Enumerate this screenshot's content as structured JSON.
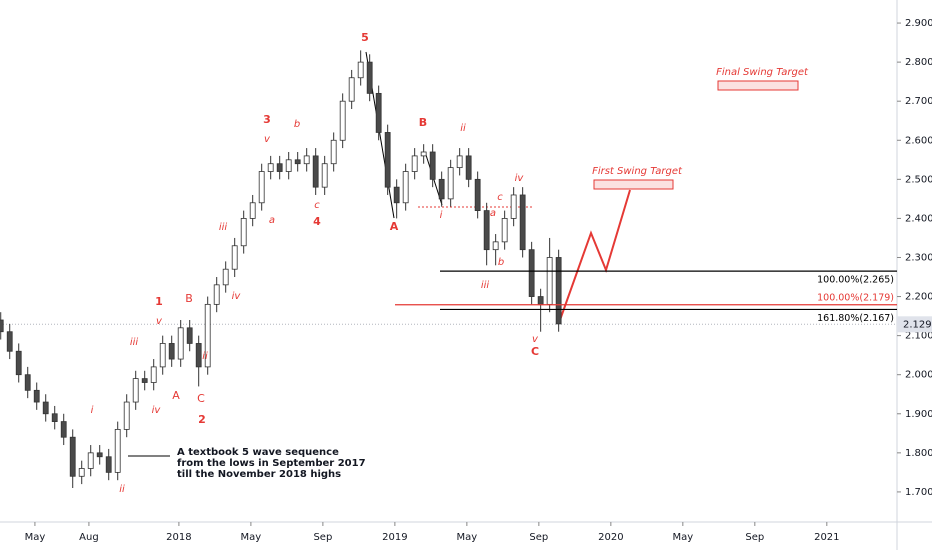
{
  "chart_data": {
    "type": "candlestick",
    "x": [
      2.1,
      2.6,
      3.1,
      3.6,
      4.1,
      4.6,
      5.1,
      5.6,
      6.1,
      6.6,
      7.1,
      7.6,
      8.1,
      8.6,
      9.1,
      9.6,
      10.1,
      10.6,
      11.1,
      11.6,
      12.1,
      12.6,
      13.1,
      13.6,
      14.1,
      14.6,
      15.1,
      15.6,
      16.1,
      16.6,
      17.1,
      17.6,
      18.1,
      18.6,
      19.1,
      19.6,
      20.1,
      20.6,
      21.1,
      21.6,
      22.1,
      22.6,
      23.1,
      23.6,
      24.1,
      24.6,
      25.1,
      25.6,
      26.1,
      26.6,
      27.1,
      27.6,
      28.1,
      28.6,
      29.1,
      29.6,
      30.1,
      30.6,
      31.1,
      31.6,
      32.1,
      32.6,
      33.1
    ],
    "open": [
      2.14,
      2.11,
      2.06,
      2.0,
      1.96,
      1.93,
      1.9,
      1.88,
      1.84,
      1.74,
      1.76,
      1.8,
      1.79,
      1.75,
      1.86,
      1.93,
      1.99,
      1.98,
      2.02,
      2.08,
      2.04,
      2.12,
      2.08,
      2.02,
      2.18,
      2.23,
      2.27,
      2.33,
      2.4,
      2.44,
      2.52,
      2.54,
      2.52,
      2.55,
      2.54,
      2.56,
      2.48,
      2.54,
      2.6,
      2.7,
      2.76,
      2.8,
      2.72,
      2.62,
      2.48,
      2.44,
      2.52,
      2.56,
      2.57,
      2.5,
      2.45,
      2.53,
      2.56,
      2.5,
      2.42,
      2.32,
      2.34,
      2.4,
      2.46,
      2.32,
      2.2,
      2.18,
      2.3
    ],
    "high": [
      2.16,
      2.13,
      2.08,
      2.02,
      1.98,
      1.95,
      1.92,
      1.9,
      1.86,
      1.78,
      1.82,
      1.82,
      1.81,
      1.88,
      1.95,
      2.01,
      2.01,
      2.04,
      2.1,
      2.1,
      2.14,
      2.14,
      2.1,
      2.2,
      2.25,
      2.29,
      2.35,
      2.42,
      2.46,
      2.54,
      2.56,
      2.56,
      2.57,
      2.57,
      2.58,
      2.58,
      2.56,
      2.62,
      2.72,
      2.78,
      2.83,
      2.82,
      2.74,
      2.64,
      2.5,
      2.54,
      2.58,
      2.59,
      2.59,
      2.52,
      2.55,
      2.58,
      2.58,
      2.52,
      2.44,
      2.36,
      2.42,
      2.48,
      2.48,
      2.34,
      2.22,
      2.35,
      2.32
    ],
    "low": [
      2.09,
      2.04,
      1.98,
      1.94,
      1.91,
      1.88,
      1.86,
      1.82,
      1.71,
      1.72,
      1.74,
      1.77,
      1.73,
      1.73,
      1.84,
      1.91,
      1.96,
      1.96,
      2.0,
      2.02,
      2.02,
      2.06,
      1.97,
      2.0,
      2.16,
      2.21,
      2.25,
      2.31,
      2.38,
      2.42,
      2.5,
      2.5,
      2.5,
      2.52,
      2.52,
      2.46,
      2.46,
      2.52,
      2.58,
      2.68,
      2.74,
      2.7,
      2.6,
      2.46,
      2.4,
      2.42,
      2.5,
      2.54,
      2.48,
      2.43,
      2.43,
      2.51,
      2.48,
      2.4,
      2.28,
      2.28,
      2.32,
      2.38,
      2.3,
      2.18,
      2.11,
      2.16,
      2.11
    ],
    "close": [
      2.11,
      2.06,
      2.0,
      1.96,
      1.93,
      1.9,
      1.88,
      1.84,
      1.74,
      1.76,
      1.8,
      1.79,
      1.75,
      1.86,
      1.93,
      1.99,
      1.98,
      2.02,
      2.08,
      2.04,
      2.12,
      2.08,
      2.02,
      2.18,
      2.23,
      2.27,
      2.33,
      2.4,
      2.44,
      2.52,
      2.54,
      2.52,
      2.55,
      2.54,
      2.56,
      2.48,
      2.54,
      2.6,
      2.7,
      2.76,
      2.8,
      2.72,
      2.62,
      2.48,
      2.44,
      2.52,
      2.56,
      2.57,
      2.5,
      2.45,
      2.53,
      2.56,
      2.5,
      2.42,
      2.32,
      2.34,
      2.4,
      2.46,
      2.32,
      2.2,
      2.18,
      2.3,
      2.13
    ],
    "up_color": "#ffffff",
    "down_color": "#4a4a4a",
    "outline_color": "#333333",
    "xlim": [
      2.06,
      51.9
    ],
    "xticks": [
      {
        "value": 4,
        "label": "May"
      },
      {
        "value": 7,
        "label": "Aug"
      },
      {
        "value": 12,
        "label": "2018"
      },
      {
        "value": 16,
        "label": "May"
      },
      {
        "value": 20,
        "label": "Sep"
      },
      {
        "value": 24,
        "label": "2019"
      },
      {
        "value": 28,
        "label": "May"
      },
      {
        "value": 32,
        "label": "Sep"
      },
      {
        "value": 36,
        "label": "2020"
      },
      {
        "value": 40,
        "label": "May"
      },
      {
        "value": 44,
        "label": "Sep"
      },
      {
        "value": 48,
        "label": "2021"
      }
    ],
    "ylim": [
      1.623,
      2.959
    ],
    "yticks": [
      {
        "value": 1.7,
        "label": "1.700"
      },
      {
        "value": 1.8,
        "label": "1.800"
      },
      {
        "value": 1.9,
        "label": "1.900"
      },
      {
        "value": 2.0,
        "label": "2.000"
      },
      {
        "value": 2.1,
        "label": "2.100"
      },
      {
        "value": 2.2,
        "label": "2.200"
      },
      {
        "value": 2.3,
        "label": "2.300"
      },
      {
        "value": 2.4,
        "label": "2.400"
      },
      {
        "value": 2.5,
        "label": "2.500"
      },
      {
        "value": 2.6,
        "label": "2.600"
      },
      {
        "value": 2.7,
        "label": "2.700"
      },
      {
        "value": 2.8,
        "label": "2.800"
      },
      {
        "value": 2.9,
        "label": "2.900"
      }
    ],
    "price_line": {
      "value": 2.129,
      "label": "2.129"
    },
    "levels": [
      {
        "value": 2.265,
        "label": "100.00%(2.265)",
        "color": "#000000"
      },
      {
        "value": 2.179,
        "label": "100.00%(2.179)",
        "color": "#e53935"
      },
      {
        "value": 2.167,
        "label": "161.80%(2.167)",
        "color": "#000000"
      }
    ],
    "annotations": [
      "5",
      "3",
      "v",
      "b",
      "a",
      "c",
      "4",
      "iii",
      "iv",
      "1",
      "v",
      "B",
      "ii",
      "iii",
      "A",
      "iv",
      "C",
      "2",
      "i",
      "ii",
      "A",
      "B",
      "ii",
      "i",
      "c",
      "a",
      "iv",
      "b",
      "iii",
      "v",
      "C"
    ],
    "targets": [
      "Final Swing Target",
      "First Swing Target"
    ],
    "note": [
      "A textbook 5 wave sequence",
      "from the lows in September 2017",
      "till the November 2018 highs"
    ]
  }
}
